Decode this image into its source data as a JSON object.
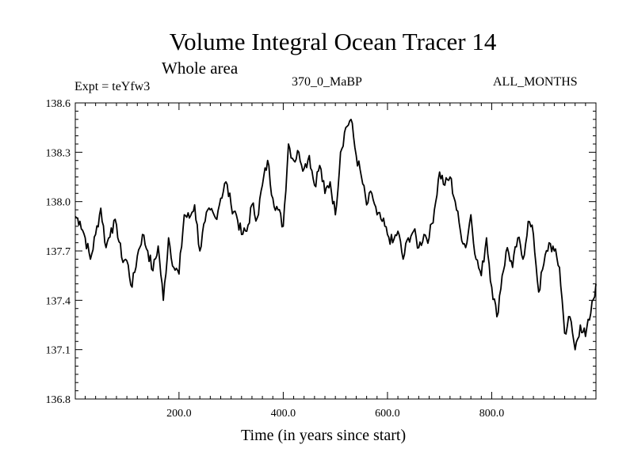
{
  "chart_data": {
    "type": "line",
    "title": "Volume Integral Ocean Tracer 14",
    "subtitle": "Whole area",
    "experiment": "Expt = teYfw3",
    "period": "370_0_MaBP",
    "months": "ALL_MONTHS",
    "xlabel": "Time (in years since start)",
    "ylabel": "",
    "xlim": [
      1,
      1000
    ],
    "ylim": [
      136.8,
      138.6
    ],
    "xticks": [
      200,
      400,
      600,
      800
    ],
    "xtick_labels": [
      "200.0",
      "400.0",
      "600.0",
      "800.0"
    ],
    "yticks": [
      136.8,
      137.1,
      137.4,
      137.7,
      138.0,
      138.3,
      138.6
    ],
    "ytick_labels": [
      "136.8",
      "137.1",
      "137.4",
      "137.7",
      "138.0",
      "138.3",
      "138.6"
    ],
    "grid": false,
    "series": [
      {
        "name": "Volume Integral Ocean Tracer 14",
        "x": [
          1,
          10,
          20,
          30,
          40,
          50,
          60,
          70,
          80,
          90,
          100,
          110,
          120,
          130,
          140,
          150,
          160,
          170,
          180,
          190,
          200,
          210,
          220,
          230,
          240,
          250,
          260,
          270,
          280,
          290,
          300,
          310,
          320,
          330,
          340,
          350,
          360,
          370,
          380,
          390,
          400,
          410,
          420,
          430,
          440,
          450,
          460,
          470,
          480,
          490,
          500,
          510,
          520,
          530,
          540,
          550,
          560,
          570,
          580,
          590,
          600,
          610,
          620,
          630,
          640,
          650,
          660,
          670,
          680,
          690,
          700,
          710,
          720,
          730,
          740,
          750,
          760,
          770,
          780,
          790,
          800,
          810,
          820,
          830,
          840,
          850,
          860,
          870,
          880,
          890,
          900,
          910,
          920,
          930,
          940,
          950,
          960,
          970,
          980,
          990,
          1000
        ],
        "values": [
          137.91,
          137.88,
          137.78,
          137.65,
          137.8,
          137.96,
          137.72,
          137.84,
          137.86,
          137.66,
          137.64,
          137.48,
          137.67,
          137.8,
          137.7,
          137.58,
          137.73,
          137.4,
          137.78,
          137.6,
          137.56,
          137.92,
          137.9,
          137.98,
          137.7,
          137.88,
          137.95,
          137.9,
          138.02,
          138.12,
          137.98,
          137.92,
          137.8,
          137.82,
          137.98,
          137.9,
          138.1,
          138.25,
          138.02,
          137.95,
          137.85,
          138.35,
          138.25,
          138.3,
          138.2,
          138.28,
          138.1,
          138.22,
          138.05,
          138.12,
          137.92,
          138.3,
          138.45,
          138.5,
          138.28,
          138.15,
          137.98,
          138.05,
          137.92,
          137.88,
          137.8,
          137.75,
          137.82,
          137.65,
          137.78,
          137.82,
          137.72,
          137.8,
          137.78,
          137.95,
          138.18,
          138.1,
          138.15,
          138.0,
          137.82,
          137.72,
          137.92,
          137.65,
          137.55,
          137.78,
          137.48,
          137.3,
          137.55,
          137.72,
          137.6,
          137.78,
          137.65,
          137.88,
          137.8,
          137.45,
          137.62,
          137.75,
          137.7,
          137.6,
          137.2,
          137.3,
          137.1,
          137.25,
          137.18,
          137.32,
          137.5
        ]
      }
    ]
  }
}
